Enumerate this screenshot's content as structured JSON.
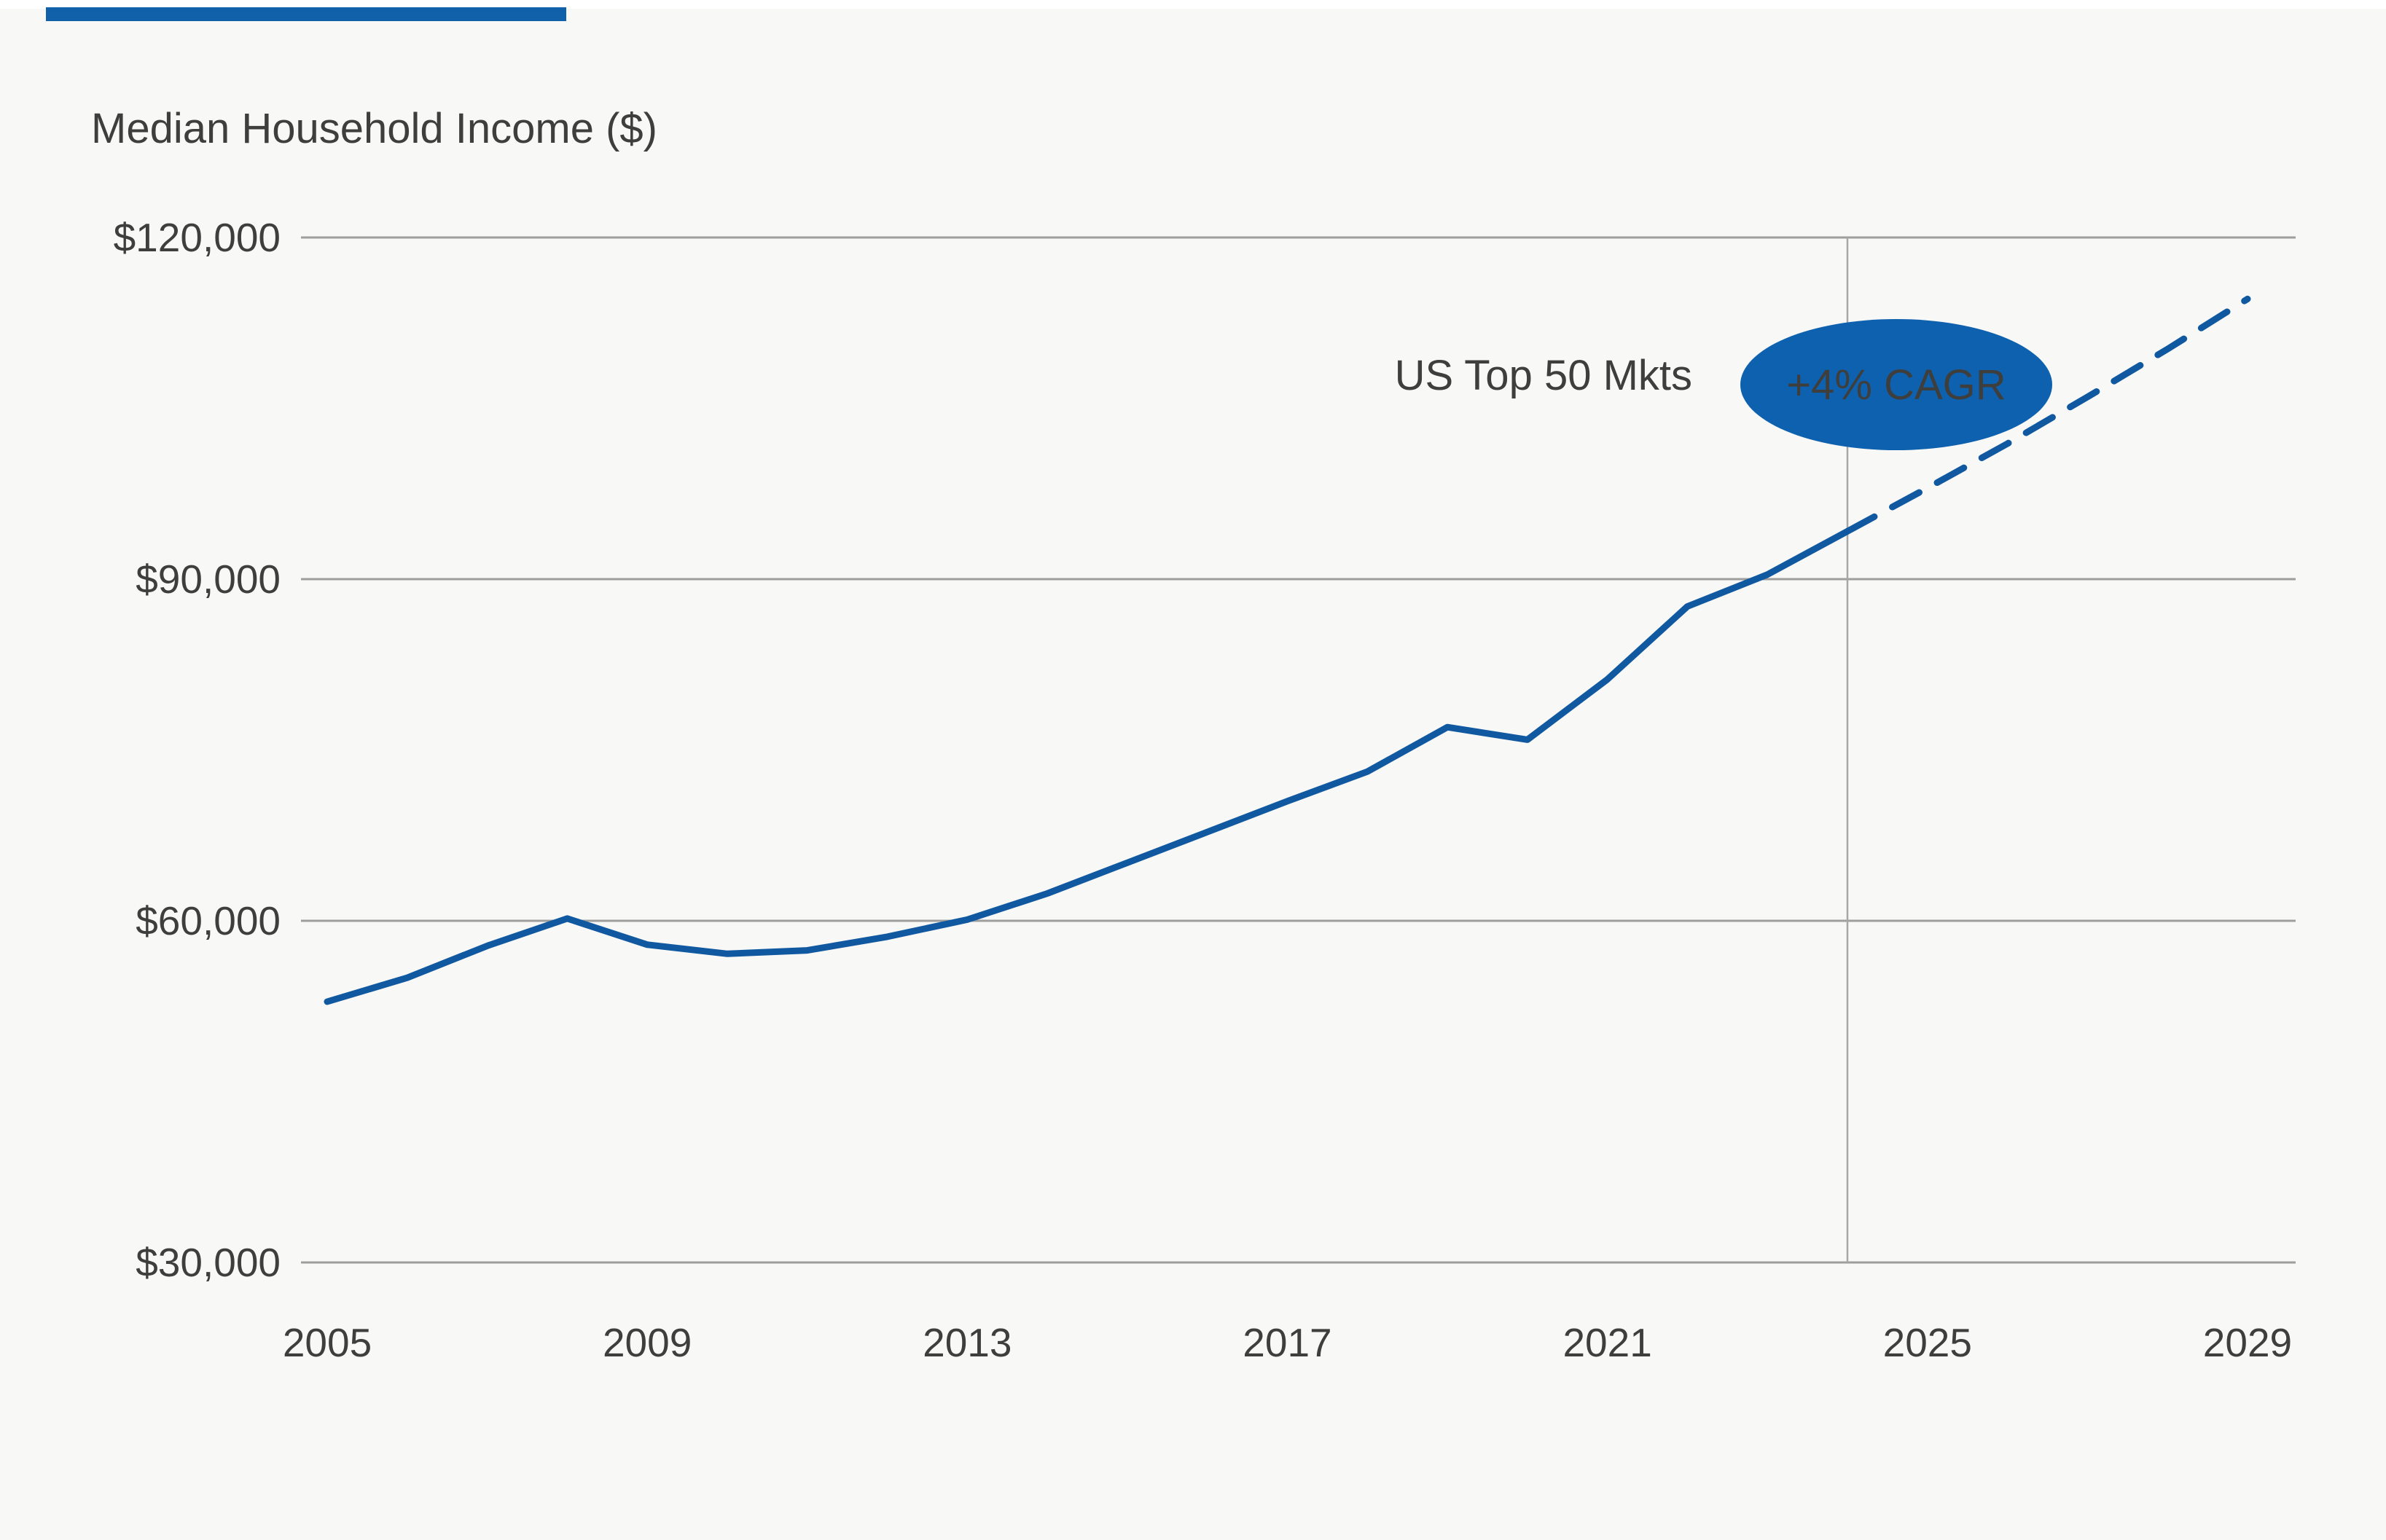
{
  "page": {
    "background_color": "#F8F8F7",
    "accent_bar_color": "#1160AA"
  },
  "chart": {
    "title": "Median Household Income ($)",
    "text_color": "#3E3E3D",
    "gridline_color": "#9E9E9E",
    "reference_line_color": "#A7A7A7",
    "line_color": "#1058A0",
    "badge_color": "#0E61AE",
    "badge_text_color": "#FFFFFF",
    "annotation_series_label": "US Top 50 Mkts",
    "annotation_badge_label": "+4% CAGR"
  },
  "chart_data": {
    "type": "line",
    "title": "Median Household Income ($)",
    "xlabel": "",
    "ylabel": "Median Household Income ($)",
    "ylim": [
      30000,
      120000
    ],
    "xlim": [
      2004.7,
      2029.6
    ],
    "grid": "horizontal-only",
    "legend_position": "none",
    "yticks": [
      {
        "value": 120000,
        "label": "$120,000"
      },
      {
        "value": 90000,
        "label": "$90,000"
      },
      {
        "value": 60000,
        "label": "$60,000"
      },
      {
        "value": 30000,
        "label": "$30,000"
      }
    ],
    "xticks": [
      {
        "value": 2005,
        "label": "2005"
      },
      {
        "value": 2009,
        "label": "2009"
      },
      {
        "value": 2013,
        "label": "2013"
      },
      {
        "value": 2017,
        "label": "2017"
      },
      {
        "value": 2021,
        "label": "2021"
      },
      {
        "value": 2025,
        "label": "2025"
      },
      {
        "value": 2029,
        "label": "2029"
      }
    ],
    "reference_line": {
      "axis": "x",
      "value": 2024
    },
    "series": [
      {
        "name": "US Top 50 Mkts",
        "style": "solid",
        "x": [
          2005,
          2006,
          2007,
          2008,
          2009,
          2010,
          2011,
          2012,
          2013,
          2014,
          2015,
          2016,
          2017,
          2018,
          2019,
          2020,
          2021,
          2022,
          2023,
          2024
        ],
        "y": [
          52900,
          55000,
          57800,
          60200,
          57900,
          57100,
          57400,
          58600,
          60100,
          62400,
          65100,
          67800,
          70500,
          73100,
          77000,
          75900,
          81200,
          87600,
          90400,
          94200
        ]
      },
      {
        "name": "US Top 50 Mkts forecast (+4% CAGR)",
        "style": "dashed",
        "x": [
          2024,
          2025,
          2026,
          2027,
          2028,
          2029
        ],
        "y": [
          94200,
          98000,
          101900,
          106000,
          110200,
          114600
        ]
      }
    ],
    "annotations": [
      {
        "text": "US Top 50 Mkts",
        "type": "label"
      },
      {
        "text": "+4% CAGR",
        "type": "ellipse-badge"
      }
    ]
  }
}
